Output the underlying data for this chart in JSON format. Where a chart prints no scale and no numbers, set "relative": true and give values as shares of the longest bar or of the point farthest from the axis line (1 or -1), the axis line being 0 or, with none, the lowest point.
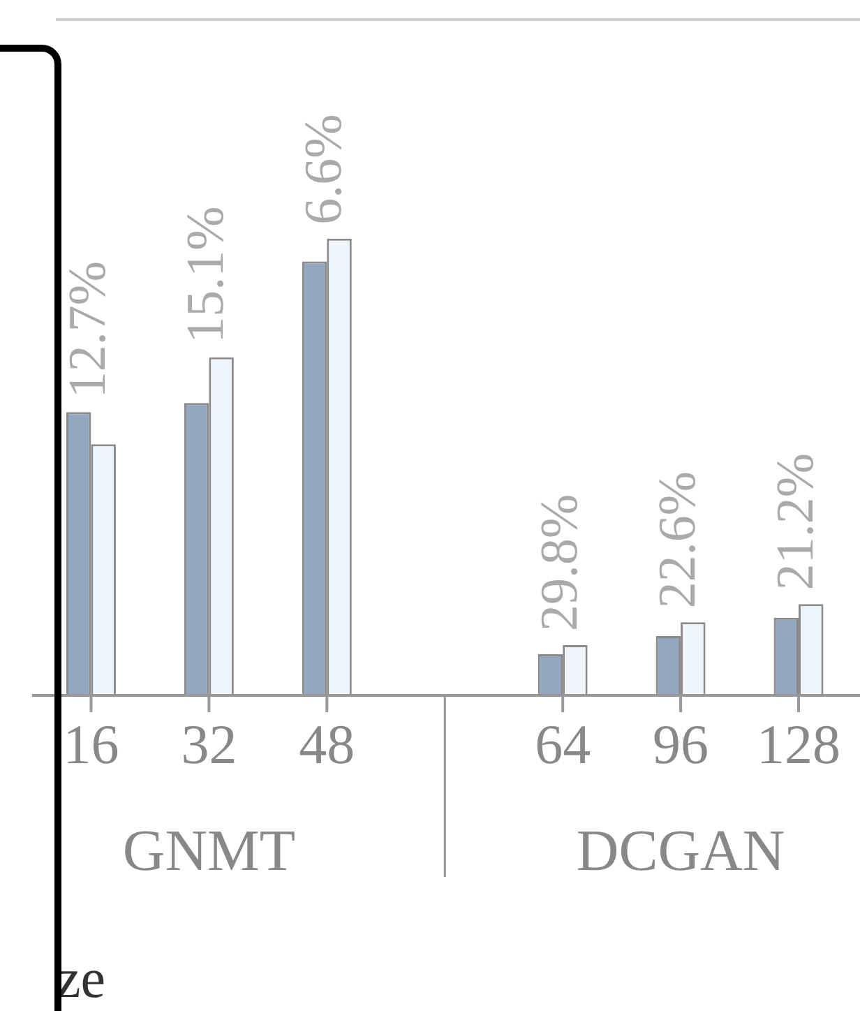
{
  "chart_data": {
    "type": "bar",
    "relative": true,
    "xlabel": "ze",
    "categories": [
      "16",
      "32",
      "48",
      null,
      "64",
      "96",
      "128"
    ],
    "series": [
      {
        "color": "#93a8c0",
        "values": [
          0.62,
          0.64,
          0.95,
          null,
          0.09,
          0.13,
          0.17
        ]
      },
      {
        "color": "#eef5fb",
        "values": [
          0.55,
          0.74,
          1,
          null,
          0.11,
          0.16,
          0.2
        ]
      }
    ],
    "annotations": [
      "GNMT",
      "DCGAN",
      {
        "text": "12.7%",
        "x": "16",
        "y": 0.62
      },
      {
        "text": "15.1%",
        "x": "32",
        "y": 0.74
      },
      {
        "text": "6.6%",
        "x": "48",
        "y": 1
      },
      {
        "text": "29.8%",
        "x": "64",
        "y": 0.11
      },
      {
        "text": "22.6%",
        "x": "96",
        "y": 0.16
      },
      {
        "text": "21.2%",
        "x": "128",
        "y": 0.2
      }
    ],
    "grid": false,
    "legend": false
  }
}
